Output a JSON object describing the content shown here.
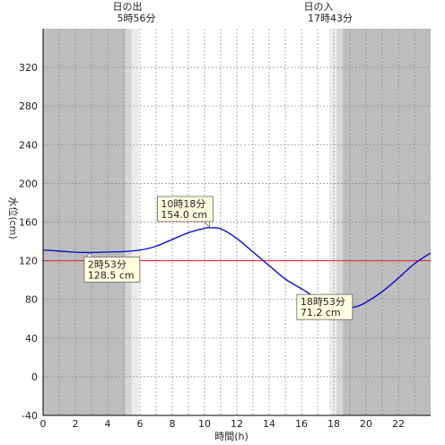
{
  "chart_data": {
    "type": "line",
    "xlabel": "時間(h)",
    "ylabel": "水位(cm)",
    "xlim": [
      0,
      24
    ],
    "ylim": [
      -40,
      360
    ],
    "x_ticks": [
      0,
      2,
      4,
      6,
      8,
      10,
      12,
      14,
      16,
      18,
      20,
      22
    ],
    "y_ticks": [
      -40,
      0,
      40,
      80,
      120,
      160,
      200,
      240,
      280,
      320
    ],
    "grid": true,
    "reference_line": {
      "y": 120,
      "color": "#e02020"
    },
    "sunrise": {
      "label": "日の出",
      "time": "5時56分",
      "hour": 5.93
    },
    "sunset": {
      "label": "日の入",
      "time": "17時43分",
      "hour": 17.72
    },
    "series": [
      {
        "color": "#0000cc",
        "x": [
          0,
          1,
          2,
          2.88,
          4,
          5,
          6,
          7,
          8,
          9,
          10,
          10.3,
          11,
          12,
          13,
          14,
          15,
          16,
          17,
          18,
          18.88,
          19.5,
          20,
          21,
          22,
          23,
          24
        ],
        "y": [
          131,
          130,
          128.8,
          128.5,
          129,
          129.5,
          131,
          135,
          142,
          149,
          153.5,
          154,
          153,
          143,
          129,
          115,
          101,
          91,
          81,
          73,
          71.2,
          73,
          77,
          88,
          102,
          117,
          128
        ]
      }
    ],
    "annotations": [
      {
        "line1": "10時18分",
        "line2": "154.0 cm",
        "x": 10.3,
        "y": 154.0
      },
      {
        "line1": "2時53分",
        "line2": "128.5 cm",
        "x": 2.88,
        "y": 128.5
      },
      {
        "line1": "18時53分",
        "line2": "71.2 cm",
        "x": 18.88,
        "y": 71.2
      }
    ]
  },
  "colors": {
    "night": "#bdbdbd",
    "twilight_outer": "#d6d6d6",
    "twilight_inner": "#ececec",
    "day": "#ffffff",
    "annotation_bg": "#ffffe0"
  }
}
